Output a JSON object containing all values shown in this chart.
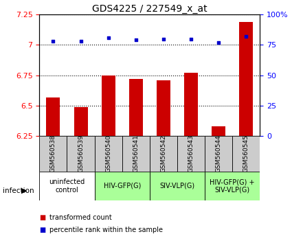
{
  "title": "GDS4225 / 227549_x_at",
  "samples": [
    "GSM560538",
    "GSM560539",
    "GSM560540",
    "GSM560541",
    "GSM560542",
    "GSM560543",
    "GSM560544",
    "GSM560545"
  ],
  "transformed_count": [
    6.57,
    6.49,
    6.75,
    6.72,
    6.71,
    6.77,
    6.33,
    7.19
  ],
  "percentile_rank": [
    78,
    78,
    81,
    79,
    80,
    80,
    77,
    82
  ],
  "ylim_left": [
    6.25,
    7.25
  ],
  "ylim_right": [
    0,
    100
  ],
  "yticks_left": [
    6.25,
    6.5,
    6.75,
    7.0,
    7.25
  ],
  "yticks_right": [
    0,
    25,
    50,
    75,
    100
  ],
  "ytick_labels_left": [
    "6.25",
    "6.5",
    "6.75",
    "7",
    "7.25"
  ],
  "ytick_labels_right": [
    "0",
    "25",
    "50",
    "75",
    "100%"
  ],
  "bar_color": "#cc0000",
  "dot_color": "#0000cc",
  "bar_width": 0.5,
  "groups": [
    {
      "label": "uninfected\ncontrol",
      "start": 0,
      "end": 2,
      "color": "#ffffff"
    },
    {
      "label": "HIV-GFP(G)",
      "start": 2,
      "end": 4,
      "color": "#aaff99"
    },
    {
      "label": "SIV-VLP(G)",
      "start": 4,
      "end": 6,
      "color": "#aaff99"
    },
    {
      "label": "HIV-GFP(G) +\nSIV-VLP(G)",
      "start": 6,
      "end": 8,
      "color": "#aaff99"
    }
  ],
  "sample_row_color": "#cccccc",
  "legend_red_label": "transformed count",
  "legend_blue_label": "percentile rank within the sample",
  "infection_label": "infection",
  "title_fontsize": 10,
  "tick_label_fontsize": 8,
  "sample_fontsize": 6.5,
  "group_fontsize": 7
}
